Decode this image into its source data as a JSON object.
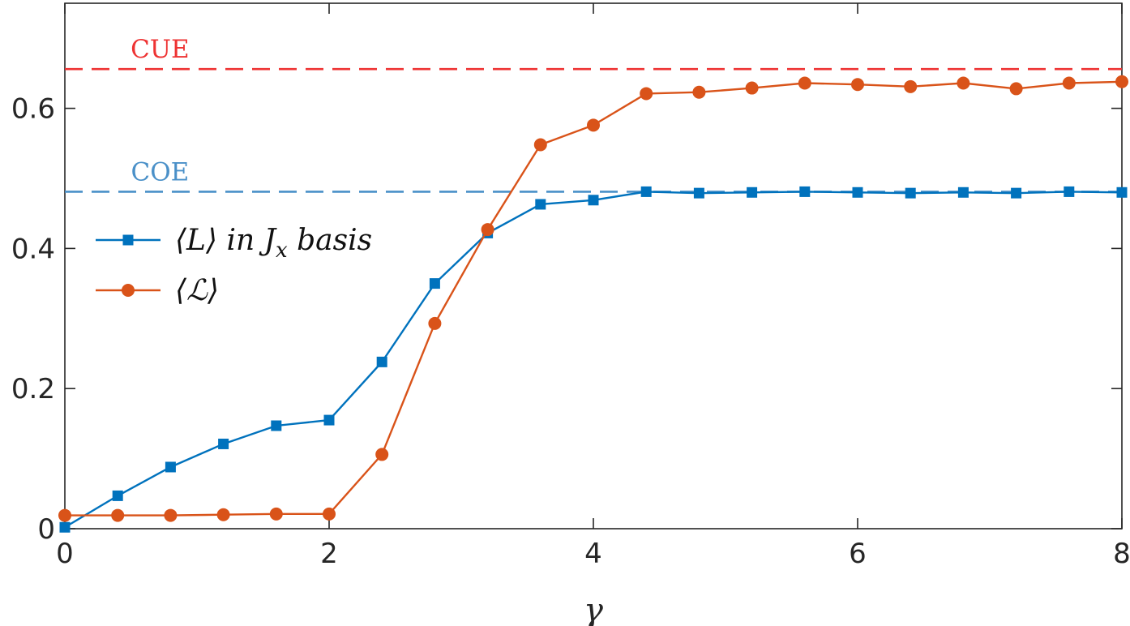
{
  "chart_data": {
    "type": "line",
    "title": "",
    "xlabel": "γ",
    "ylabel": "",
    "xlim": [
      0,
      8
    ],
    "ylim": [
      0,
      0.75
    ],
    "grid": false,
    "legend_position": "left",
    "x_ticks": [
      {
        "value": 0,
        "label": "0"
      },
      {
        "value": 2,
        "label": "2"
      },
      {
        "value": 4,
        "label": "4"
      },
      {
        "value": 6,
        "label": "6"
      },
      {
        "value": 8,
        "label": "8"
      }
    ],
    "y_ticks": [
      {
        "value": 0,
        "label": "0"
      },
      {
        "value": 0.2,
        "label": "0.2"
      },
      {
        "value": 0.4,
        "label": "0.4"
      },
      {
        "value": 0.6,
        "label": "0.6"
      }
    ],
    "x": [
      0,
      0.4,
      0.8,
      1.2,
      1.6,
      2.0,
      2.4,
      2.8,
      3.2,
      3.6,
      4.0,
      4.4,
      4.8,
      5.2,
      5.6,
      6.0,
      6.4,
      6.8,
      7.2,
      7.6,
      8.0
    ],
    "series": [
      {
        "name": "⟨L⟩ in J_x basis",
        "legend": {
          "pre": "⟨L⟩ in J",
          "sub": "x",
          "post": " basis"
        },
        "color": "#0072BD",
        "marker": "square",
        "values": [
          0.002,
          0.047,
          0.088,
          0.121,
          0.147,
          0.155,
          0.238,
          0.35,
          0.422,
          0.463,
          0.469,
          0.481,
          0.479,
          0.48,
          0.481,
          0.48,
          0.479,
          0.48,
          0.479,
          0.481,
          0.48
        ]
      },
      {
        "name": "⟨ℒ⟩",
        "legend": {
          "pre": "⟨ℒ⟩",
          "sub": "",
          "post": ""
        },
        "color": "#D95319",
        "marker": "circle",
        "values": [
          0.019,
          0.019,
          0.019,
          0.02,
          0.021,
          0.021,
          0.106,
          0.293,
          0.427,
          0.548,
          0.576,
          0.621,
          0.623,
          0.629,
          0.636,
          0.634,
          0.631,
          0.636,
          0.628,
          0.636,
          0.638
        ]
      }
    ],
    "reference_lines": [
      {
        "label": "CUE",
        "value": 0.656,
        "color": "#EE3333",
        "label_x": 0.72
      },
      {
        "label": "COE",
        "value": 0.481,
        "color": "#4A90C8",
        "label_x": 0.72
      }
    ]
  }
}
